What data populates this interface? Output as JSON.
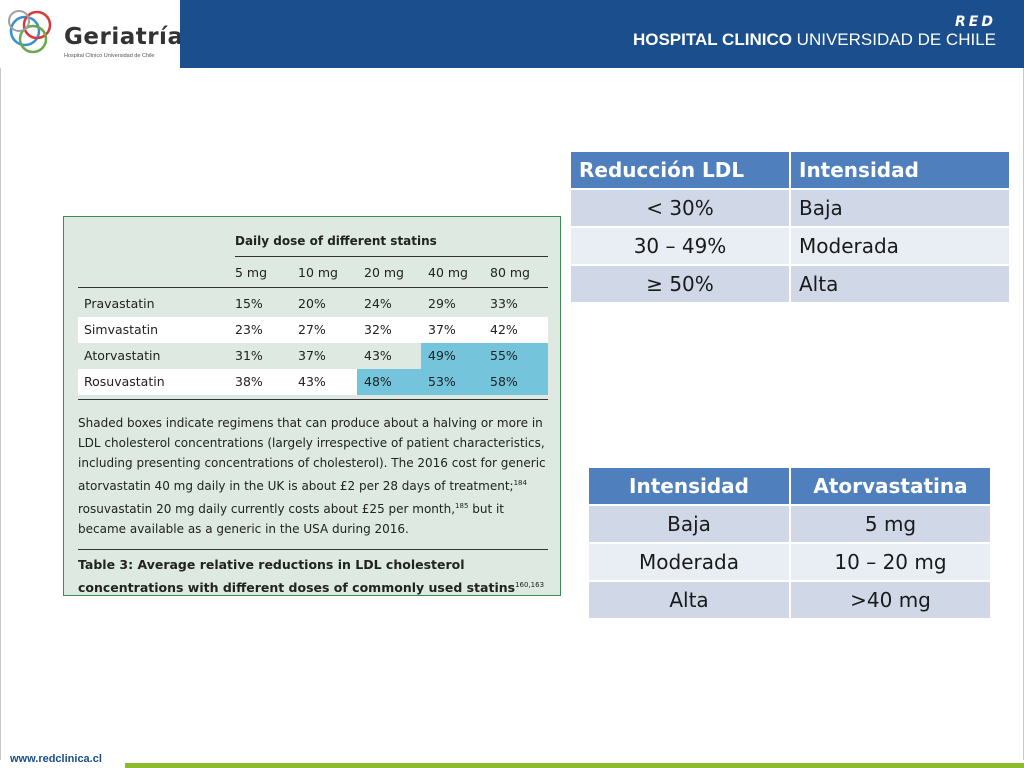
{
  "header": {
    "logo_title": "Geriatría",
    "logo_subtitle": "Hospital Clínico Universidad de Chile",
    "network_mark": "RED",
    "hospital_bold": "HOSPITAL CLINICO",
    "hospital_rest": " UNIVERSIDAD DE CHILE",
    "band_color": "#1a4e8c"
  },
  "figure": {
    "heading": "Daily dose of different statins",
    "doses": [
      "5 mg",
      "10 mg",
      "20 mg",
      "40 mg",
      "80 mg"
    ],
    "rows": [
      {
        "name": "Pravastatin",
        "values": [
          "15%",
          "20%",
          "24%",
          "29%",
          "33%"
        ],
        "shaded_from": null
      },
      {
        "name": "Simvastatin",
        "values": [
          "23%",
          "27%",
          "32%",
          "37%",
          "42%"
        ],
        "shaded_from": null
      },
      {
        "name": "Atorvastatin",
        "values": [
          "31%",
          "37%",
          "43%",
          "49%",
          "55%"
        ],
        "shaded_from": "40 mg"
      },
      {
        "name": "Rosuvastatin",
        "values": [
          "38%",
          "43%",
          "48%",
          "53%",
          "58%"
        ],
        "shaded_from": "20 mg"
      }
    ],
    "shade_color": "#74c5dc",
    "caption_a": "Shaded boxes indicate regimens that can produce about a halving or more in LDL cholesterol concentrations (largely irrespective of patient characteristics, including presenting concentrations of cholesterol). The 2016 cost for generic atorvastatin 40 mg daily in the UK is about £2 per 28 days of treatment;",
    "caption_ref1": "184",
    "caption_b": " rosuvastatin 20 mg daily currently costs about £25 per month,",
    "caption_ref2": "185",
    "caption_c": " but it became available as a generic in the USA during 2016.",
    "table_caption": "Table 3: Average relative reductions in LDL cholesterol concentrations with different doses of commonly used statins",
    "table_caption_ref": "160,163"
  },
  "table_ldl": {
    "headers": [
      "Reducción LDL",
      "Intensidad"
    ],
    "rows": [
      [
        "< 30%",
        "Baja"
      ],
      [
        "30 – 49%",
        "Moderada"
      ],
      [
        "≥ 50%",
        "Alta"
      ]
    ]
  },
  "table_atorva": {
    "headers": [
      "Intensidad",
      "Atorvastatina"
    ],
    "rows": [
      [
        "Baja",
        "5 mg"
      ],
      [
        "Moderada",
        "10 – 20 mg"
      ],
      [
        "Alta",
        ">40 mg"
      ]
    ]
  },
  "footer": {
    "url": "www.redclinica.cl",
    "bar_color": "#8dbb2e"
  }
}
